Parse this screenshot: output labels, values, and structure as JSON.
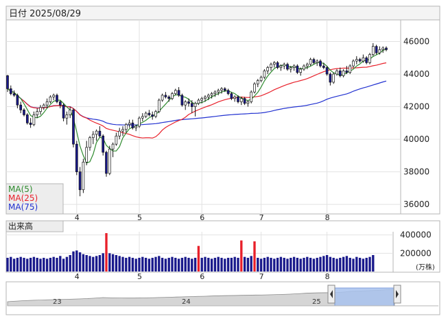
{
  "header": {
    "date_label": "日付 2025/08/29"
  },
  "legend": {
    "ma5": "MA(5)",
    "ma25": "MA(25)",
    "ma75": "MA(75)",
    "colors": {
      "ma5": "#2e8b2e",
      "ma25": "#e8202a",
      "ma75": "#2030d0"
    }
  },
  "volume_label": "出来高",
  "volume_unit": "(万株)",
  "colors": {
    "up": "#ffffff",
    "down": "#1a1a8c",
    "vol_normal": "#1a1a8c",
    "vol_high": "#e8202a"
  },
  "navigator": {
    "labels": [
      "23",
      "24",
      "25"
    ]
  },
  "chart_data": [
    {
      "type": "candlestick",
      "title": "",
      "ylim": [
        35500,
        47200
      ],
      "yticks": [
        36000,
        38000,
        40000,
        42000,
        44000,
        46000
      ],
      "month_labels": [
        {
          "label": "4",
          "day": 21
        },
        {
          "label": "5",
          "day": 40
        },
        {
          "label": "6",
          "day": 59
        },
        {
          "label": "7",
          "day": 77
        },
        {
          "label": "8",
          "day": 97
        }
      ],
      "ohlc": [
        [
          43900,
          43950,
          42900,
          43100
        ],
        [
          43100,
          43300,
          42700,
          42800
        ],
        [
          42800,
          43000,
          42600,
          42700
        ],
        [
          42700,
          42800,
          41900,
          42100
        ],
        [
          42100,
          42300,
          41600,
          41800
        ],
        [
          41800,
          41900,
          41400,
          41500
        ],
        [
          41500,
          41600,
          40900,
          41000
        ],
        [
          41000,
          41300,
          40700,
          40900
        ],
        [
          40900,
          41700,
          40800,
          41500
        ],
        [
          41500,
          41900,
          41300,
          41700
        ],
        [
          41700,
          42100,
          41500,
          41950
        ],
        [
          41950,
          42200,
          41800,
          42100
        ],
        [
          42100,
          42500,
          41900,
          42300
        ],
        [
          42300,
          42700,
          42200,
          42600
        ],
        [
          42600,
          42800,
          42400,
          42700
        ],
        [
          42700,
          42800,
          42200,
          42300
        ],
        [
          42300,
          42400,
          41900,
          42100
        ],
        [
          42100,
          42200,
          41100,
          41300
        ],
        [
          41300,
          41700,
          40900,
          41500
        ],
        [
          41500,
          42000,
          41300,
          41800
        ],
        [
          41800,
          41900,
          39500,
          39700
        ],
        [
          39700,
          39900,
          37800,
          38000
        ],
        [
          38000,
          38300,
          36500,
          36900
        ],
        [
          36900,
          38800,
          36700,
          38600
        ],
        [
          38600,
          39900,
          38400,
          39500
        ],
        [
          39500,
          40200,
          39300,
          40100
        ],
        [
          40100,
          40500,
          39700,
          40300
        ],
        [
          40300,
          40600,
          39900,
          40500
        ],
        [
          40500,
          40800,
          40100,
          40200
        ],
        [
          40200,
          40300,
          39000,
          39200
        ],
        [
          39200,
          39300,
          37700,
          37900
        ],
        [
          37900,
          39600,
          37800,
          39400
        ],
        [
          39400,
          39800,
          38900,
          39700
        ],
        [
          39700,
          40400,
          39600,
          40200
        ],
        [
          40200,
          40700,
          40000,
          40500
        ],
        [
          40500,
          40800,
          40200,
          40600
        ],
        [
          40600,
          41000,
          40400,
          40900
        ],
        [
          40900,
          41200,
          40700,
          41000
        ],
        [
          41000,
          41200,
          40600,
          40700
        ],
        [
          40700,
          40900,
          40500,
          40800
        ],
        [
          40800,
          41400,
          40700,
          41300
        ],
        [
          41300,
          41600,
          41100,
          41400
        ],
        [
          41400,
          41700,
          41300,
          41600
        ],
        [
          41600,
          41800,
          41400,
          41500
        ],
        [
          41500,
          41700,
          41200,
          41400
        ],
        [
          41400,
          41800,
          41300,
          41700
        ],
        [
          41700,
          42500,
          41600,
          42400
        ],
        [
          42400,
          42800,
          42300,
          42700
        ],
        [
          42700,
          42900,
          42500,
          42600
        ],
        [
          42600,
          42700,
          42300,
          42500
        ],
        [
          42500,
          42900,
          42400,
          42800
        ],
        [
          42800,
          43100,
          42700,
          43000
        ],
        [
          43000,
          43200,
          42600,
          42700
        ],
        [
          42700,
          42800,
          42000,
          42100
        ],
        [
          42100,
          42400,
          41800,
          42300
        ],
        [
          42300,
          42500,
          42000,
          42200
        ],
        [
          42200,
          42400,
          41600,
          42000
        ],
        [
          42000,
          42300,
          41400,
          42200
        ],
        [
          42200,
          42500,
          42100,
          42400
        ],
        [
          42400,
          42600,
          42200,
          42500
        ],
        [
          42500,
          42700,
          42300,
          42600
        ],
        [
          42600,
          42800,
          42400,
          42700
        ],
        [
          42700,
          42900,
          42500,
          42800
        ],
        [
          42800,
          43000,
          42600,
          42900
        ],
        [
          42900,
          43100,
          42700,
          43000
        ],
        [
          43000,
          43200,
          42800,
          43100
        ],
        [
          43100,
          43200,
          42900,
          43000
        ],
        [
          43000,
          43100,
          42700,
          42800
        ],
        [
          42800,
          42900,
          42400,
          42500
        ],
        [
          42500,
          42700,
          42300,
          42600
        ],
        [
          42600,
          42700,
          42200,
          42300
        ],
        [
          42300,
          42600,
          42100,
          42500
        ],
        [
          42500,
          42600,
          42100,
          42200
        ],
        [
          42200,
          42400,
          42000,
          42300
        ],
        [
          42300,
          43000,
          42200,
          42900
        ],
        [
          42900,
          43500,
          42800,
          43400
        ],
        [
          43400,
          43700,
          43200,
          43600
        ],
        [
          43600,
          43900,
          43500,
          43800
        ],
        [
          43800,
          44300,
          43700,
          44200
        ],
        [
          44200,
          44500,
          44000,
          44400
        ],
        [
          44400,
          44700,
          44200,
          44600
        ],
        [
          44600,
          44800,
          44400,
          44700
        ],
        [
          44700,
          44800,
          44300,
          44400
        ],
        [
          44400,
          44600,
          44200,
          44500
        ],
        [
          44500,
          44700,
          44300,
          44600
        ],
        [
          44600,
          44700,
          44200,
          44300
        ],
        [
          44300,
          44500,
          44100,
          44400
        ],
        [
          44400,
          44600,
          44200,
          44500
        ],
        [
          44500,
          44600,
          44000,
          44100
        ],
        [
          44100,
          44400,
          43900,
          44300
        ],
        [
          44300,
          44600,
          44200,
          44500
        ],
        [
          44500,
          44700,
          44300,
          44600
        ],
        [
          44600,
          45000,
          44500,
          44900
        ],
        [
          44900,
          45000,
          44600,
          44700
        ],
        [
          44700,
          44900,
          44500,
          44800
        ],
        [
          44800,
          44900,
          44400,
          44500
        ],
        [
          44500,
          44700,
          44300,
          44400
        ],
        [
          44400,
          44500,
          43900,
          44000
        ],
        [
          44000,
          44100,
          43300,
          43500
        ],
        [
          43500,
          44100,
          43400,
          44000
        ],
        [
          44000,
          44300,
          43900,
          44200
        ],
        [
          44200,
          44400,
          43800,
          43900
        ],
        [
          43900,
          44300,
          43800,
          44200
        ],
        [
          44200,
          44500,
          44000,
          44100
        ],
        [
          44100,
          44600,
          44000,
          44500
        ],
        [
          44500,
          44900,
          44400,
          44800
        ],
        [
          44800,
          45100,
          44600,
          44900
        ],
        [
          44900,
          45000,
          44700,
          44800
        ],
        [
          44800,
          45200,
          44700,
          45000
        ],
        [
          45000,
          45100,
          44600,
          44700
        ],
        [
          44700,
          45300,
          44600,
          45200
        ],
        [
          45200,
          45900,
          45100,
          45700
        ],
        [
          45700,
          45800,
          45200,
          45300
        ],
        [
          45300,
          45700,
          45200,
          45500
        ],
        [
          45500,
          45700,
          45300,
          45600
        ],
        [
          45600,
          45700,
          45400,
          45500
        ]
      ]
    },
    {
      "type": "bar",
      "title": "Volume",
      "ylabel": "(万株)",
      "ylim": [
        0,
        480000
      ],
      "yticks": [
        200000,
        400000
      ],
      "values": [
        150000,
        160000,
        140000,
        150000,
        160000,
        150000,
        140000,
        150000,
        160000,
        150000,
        140000,
        150000,
        140000,
        150000,
        160000,
        150000,
        170000,
        140000,
        160000,
        180000,
        220000,
        230000,
        210000,
        190000,
        180000,
        170000,
        160000,
        170000,
        180000,
        200000,
        420000,
        200000,
        190000,
        180000,
        170000,
        160000,
        150000,
        160000,
        150000,
        140000,
        150000,
        160000,
        150000,
        140000,
        150000,
        160000,
        170000,
        150000,
        140000,
        150000,
        160000,
        150000,
        140000,
        150000,
        160000,
        150000,
        140000,
        150000,
        280000,
        150000,
        160000,
        150000,
        140000,
        150000,
        160000,
        150000,
        140000,
        150000,
        150000,
        160000,
        150000,
        340000,
        160000,
        150000,
        170000,
        330000,
        150000,
        140000,
        150000,
        160000,
        150000,
        140000,
        150000,
        160000,
        150000,
        140000,
        150000,
        160000,
        150000,
        140000,
        150000,
        160000,
        150000,
        140000,
        150000,
        160000,
        170000,
        180000,
        160000,
        150000,
        140000,
        150000,
        160000,
        170000,
        150000,
        140000,
        160000,
        150000,
        140000,
        150000,
        160000,
        180000
      ]
    }
  ]
}
